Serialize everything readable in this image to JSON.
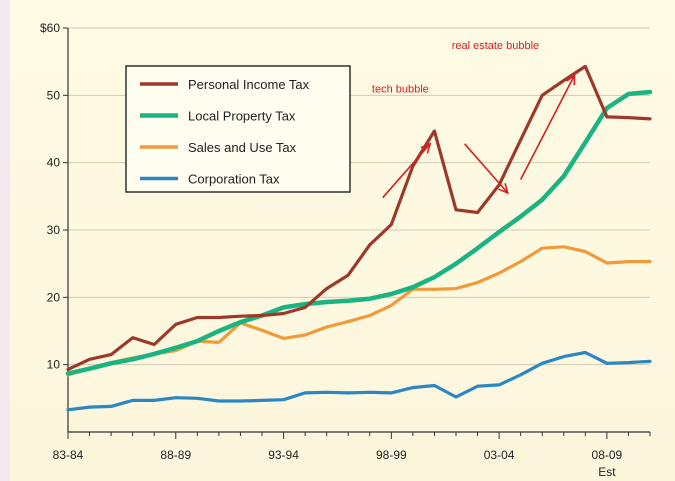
{
  "chart_data": {
    "type": "line",
    "title": "",
    "xlabel": "",
    "ylabel": "",
    "ylim": [
      0,
      60
    ],
    "y_ticks": [
      {
        "value": 10,
        "label": "10"
      },
      {
        "value": 20,
        "label": "20"
      },
      {
        "value": 30,
        "label": "30"
      },
      {
        "value": 40,
        "label": "40"
      },
      {
        "value": 50,
        "label": "50"
      },
      {
        "value": 60,
        "label": "$60"
      }
    ],
    "x_tick_labels": [
      "83-84",
      "88-89",
      "93-94",
      "98-99",
      "03-04",
      "08-09"
    ],
    "x_tick_sublabel": "Est",
    "categories": [
      "83-84",
      "84-85",
      "85-86",
      "86-87",
      "87-88",
      "88-89",
      "89-90",
      "90-91",
      "91-92",
      "92-93",
      "93-94",
      "94-95",
      "95-96",
      "96-97",
      "97-98",
      "98-99",
      "99-00",
      "00-01",
      "01-02",
      "02-03",
      "03-04",
      "04-05",
      "05-06",
      "06-07",
      "07-08",
      "08-09",
      "09-10",
      "10-11"
    ],
    "grid": true,
    "legend_position": "top-left",
    "series": [
      {
        "name": "Personal Income Tax",
        "color": "#9c3a2a",
        "values": [
          9.3,
          10.8,
          11.5,
          14.0,
          13.0,
          16.0,
          17.0,
          17.0,
          17.2,
          17.3,
          17.6,
          18.5,
          21.3,
          23.3,
          27.8,
          30.8,
          39.5,
          44.7,
          33.0,
          32.6,
          36.7,
          43.4,
          50.0,
          52.2,
          54.3,
          46.8,
          46.7,
          46.5
        ]
      },
      {
        "name": "Local Property Tax",
        "color": "#1ab483",
        "values": [
          8.7,
          9.4,
          10.2,
          10.8,
          11.6,
          12.5,
          13.5,
          15.0,
          16.3,
          17.3,
          18.5,
          19.0,
          19.3,
          19.5,
          19.8,
          20.5,
          21.5,
          23.0,
          25.0,
          27.3,
          29.7,
          32.0,
          34.5,
          38.0,
          43.0,
          48.1,
          50.2,
          50.5
        ]
      },
      {
        "name": "Sales and Use Tax",
        "color": "#f09a3a",
        "values": [
          8.5,
          9.5,
          10.3,
          11.0,
          11.6,
          12.1,
          13.5,
          13.3,
          16.2,
          15.1,
          13.9,
          14.4,
          15.6,
          16.4,
          17.3,
          18.8,
          21.2,
          21.2,
          21.3,
          22.2,
          23.6,
          25.3,
          27.3,
          27.5,
          26.8,
          25.1,
          25.3,
          25.3
        ]
      },
      {
        "name": "Corporation Tax",
        "color": "#2a86c5",
        "values": [
          3.3,
          3.7,
          3.8,
          4.7,
          4.7,
          5.1,
          5.0,
          4.6,
          4.6,
          4.7,
          4.8,
          5.8,
          5.9,
          5.8,
          5.9,
          5.8,
          6.6,
          6.9,
          5.2,
          6.8,
          7.0,
          8.5,
          10.2,
          11.2,
          11.8,
          10.2,
          10.3,
          10.5
        ]
      }
    ],
    "annotations": [
      {
        "text": "tech bubble",
        "color": "#d42020"
      },
      {
        "text": "real estate bubble",
        "color": "#d42020"
      }
    ]
  }
}
